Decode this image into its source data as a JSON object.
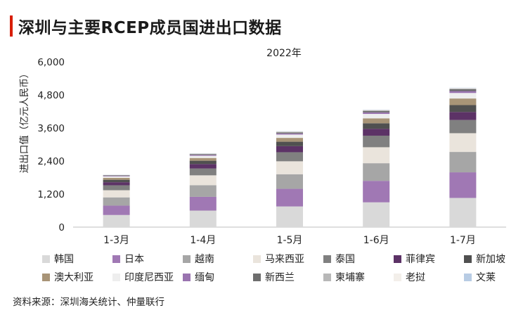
{
  "title": "深圳与主要RCEP成员国进出口数据",
  "source": "资料来源：深圳海关统计、仲量联行",
  "chart_data": {
    "type": "bar",
    "stacked": true,
    "subtitle": "2022年",
    "ylabel": "进出口值（亿元人民币）",
    "xlabel": "",
    "ylim": [
      0,
      6000
    ],
    "yticks": [
      0,
      1200,
      2400,
      3600,
      4800,
      6000
    ],
    "ytick_labels": [
      "0",
      "1,200",
      "2,400",
      "3,600",
      "4,800",
      "6,000"
    ],
    "grid": false,
    "legend_position": "bottom",
    "categories": [
      "1-3月",
      "1-4月",
      "1-5月",
      "1-6月",
      "1-7月"
    ],
    "series": [
      {
        "name": "韩国",
        "color": "#d9d9d9",
        "values": [
          440,
          600,
          750,
          900,
          1060
        ]
      },
      {
        "name": "日本",
        "color": "#a078b4",
        "values": [
          340,
          500,
          640,
          780,
          930
        ]
      },
      {
        "name": "越南",
        "color": "#a6a6a6",
        "values": [
          300,
          420,
          530,
          640,
          740
        ]
      },
      {
        "name": "马来西亚",
        "color": "#eae4dc",
        "values": [
          260,
          360,
          470,
          580,
          680
        ]
      },
      {
        "name": "泰国",
        "color": "#808080",
        "values": [
          180,
          250,
          330,
          420,
          480
        ]
      },
      {
        "name": "菲律宾",
        "color": "#5c3266",
        "values": [
          110,
          160,
          220,
          250,
          290
        ]
      },
      {
        "name": "新加坡",
        "color": "#505050",
        "values": [
          90,
          120,
          160,
          200,
          250
        ]
      },
      {
        "name": "澳大利亚",
        "color": "#a89477",
        "values": [
          70,
          100,
          140,
          180,
          240
        ]
      },
      {
        "name": "印度尼西亚",
        "color": "#eeeeee",
        "values": [
          50,
          80,
          120,
          160,
          200
        ]
      },
      {
        "name": "缅甸",
        "color": "#9a74b0",
        "values": [
          20,
          30,
          40,
          55,
          70
        ]
      },
      {
        "name": "新西兰",
        "color": "#6e6e6e",
        "values": [
          20,
          30,
          40,
          55,
          65
        ]
      },
      {
        "name": "柬埔寨",
        "color": "#b8b8b8",
        "values": [
          10,
          15,
          20,
          25,
          30
        ]
      },
      {
        "name": "老挝",
        "color": "#f3efea",
        "values": [
          8,
          10,
          12,
          14,
          16
        ]
      },
      {
        "name": "文莱",
        "color": "#b8cce4",
        "values": [
          5,
          6,
          7,
          8,
          10
        ]
      }
    ]
  }
}
